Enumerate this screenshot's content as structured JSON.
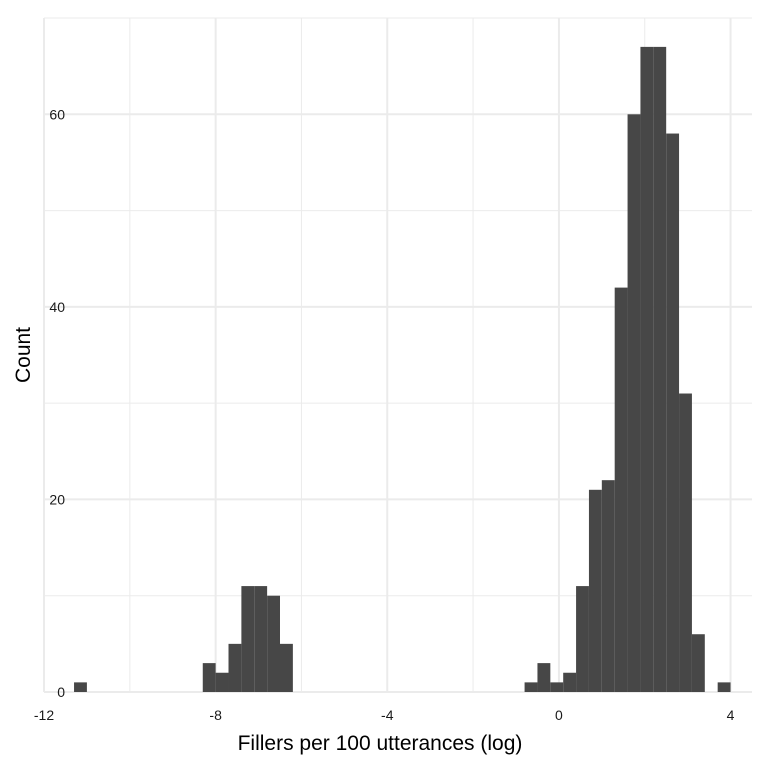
{
  "chart_data": {
    "type": "bar",
    "subtype": "histogram",
    "title": "",
    "xlabel": "Fillers per 100 utterances (log)",
    "ylabel": "Count",
    "xlim": [
      -12.0,
      4.5
    ],
    "ylim": [
      0,
      70
    ],
    "x_ticks": [
      -12,
      -8,
      -4,
      0,
      4
    ],
    "y_ticks": [
      0,
      20,
      40,
      60
    ],
    "grid": true,
    "legend": "none",
    "colors": {
      "bar": "#474747",
      "grid": "#ebebeb",
      "background": "#ffffff"
    },
    "bin_width": 0.3,
    "bins": [
      {
        "x0": -11.3,
        "x1": -11.0,
        "count": 1
      },
      {
        "x0": -8.3,
        "x1": -8.0,
        "count": 3
      },
      {
        "x0": -8.0,
        "x1": -7.7,
        "count": 2
      },
      {
        "x0": -7.7,
        "x1": -7.4,
        "count": 5
      },
      {
        "x0": -7.4,
        "x1": -7.1,
        "count": 11
      },
      {
        "x0": -7.1,
        "x1": -6.8,
        "count": 11
      },
      {
        "x0": -6.8,
        "x1": -6.5,
        "count": 10
      },
      {
        "x0": -6.5,
        "x1": -6.2,
        "count": 5
      },
      {
        "x0": -0.8,
        "x1": -0.5,
        "count": 1
      },
      {
        "x0": -0.5,
        "x1": -0.2,
        "count": 3
      },
      {
        "x0": -0.2,
        "x1": 0.1,
        "count": 1
      },
      {
        "x0": 0.1,
        "x1": 0.4,
        "count": 2
      },
      {
        "x0": 0.4,
        "x1": 0.7,
        "count": 11
      },
      {
        "x0": 0.7,
        "x1": 1.0,
        "count": 21
      },
      {
        "x0": 1.0,
        "x1": 1.3,
        "count": 22
      },
      {
        "x0": 1.3,
        "x1": 1.6,
        "count": 42
      },
      {
        "x0": 1.6,
        "x1": 1.9,
        "count": 60
      },
      {
        "x0": 1.9,
        "x1": 2.2,
        "count": 67
      },
      {
        "x0": 2.2,
        "x1": 2.5,
        "count": 67
      },
      {
        "x0": 2.5,
        "x1": 2.8,
        "count": 58
      },
      {
        "x0": 2.8,
        "x1": 3.1,
        "count": 31
      },
      {
        "x0": 3.1,
        "x1": 3.4,
        "count": 6
      },
      {
        "x0": 3.7,
        "x1": 4.0,
        "count": 1
      }
    ]
  }
}
